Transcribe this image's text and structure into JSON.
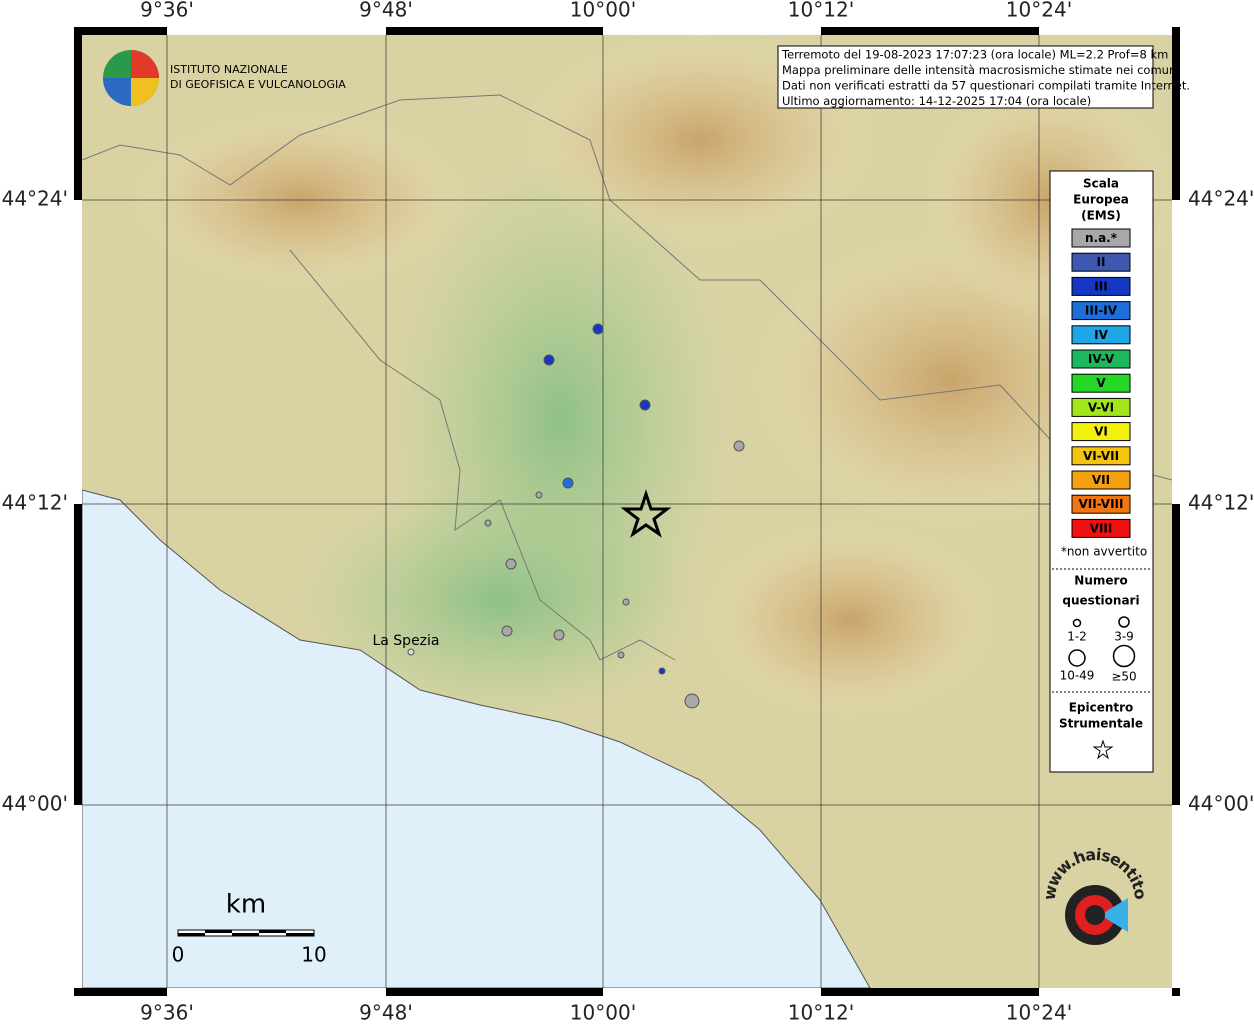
{
  "map": {
    "lon_labels": [
      "9°36'",
      "9°48'",
      "10°00'",
      "10°12'",
      "10°24'"
    ],
    "lat_labels": [
      "44°24'",
      "44°12'",
      "44°00'"
    ],
    "logo": [
      "ISTITUTO NAZIONALE",
      "DI GEOFISICA E VULCANOLOGIA"
    ],
    "info": [
      "Terremoto del 19-08-2023 17:07:23 (ora locale) ML=2.2 Prof=8 km",
      "Mappa preliminare delle intensità macrosismiche stimate nei comuni",
      "Dati non verificati estratti da 57 questionari compilati tramite Internet.",
      "Ultimo aggiornamento: 14-12-2025 17:04 (ora locale)"
    ],
    "place": "La Spezia",
    "scale": {
      "unit": "km",
      "labels": [
        "0",
        "10"
      ]
    },
    "watermark": "www.haisentitoilterremoto.it"
  },
  "legend": {
    "title": [
      "Scala",
      "Europea",
      "(EMS)"
    ],
    "classes": [
      {
        "label": "n.a.*",
        "color": "#a8a8a8"
      },
      {
        "label": "II",
        "color": "#3d58b0"
      },
      {
        "label": "III",
        "color": "#1537c2"
      },
      {
        "label": "III-IV",
        "color": "#1c6ed8"
      },
      {
        "label": "IV",
        "color": "#1ea6e6"
      },
      {
        "label": "IV-V",
        "color": "#1db85e"
      },
      {
        "label": "V",
        "color": "#25d825"
      },
      {
        "label": "V-VI",
        "color": "#a4e61c"
      },
      {
        "label": "VI",
        "color": "#f4f00e"
      },
      {
        "label": "VI-VII",
        "color": "#f4c40e"
      },
      {
        "label": "VII",
        "color": "#f5a00e"
      },
      {
        "label": "VII-VIII",
        "color": "#f2760f"
      },
      {
        "label": "VIII",
        "color": "#f01010"
      }
    ],
    "note": "*non avvertito",
    "size_title": [
      "Numero",
      "questionari"
    ],
    "sizes": [
      "1-2",
      "3-9",
      "10-49",
      "≥50"
    ],
    "epicenter_title": [
      "Epicentro",
      "Strumentale"
    ]
  }
}
